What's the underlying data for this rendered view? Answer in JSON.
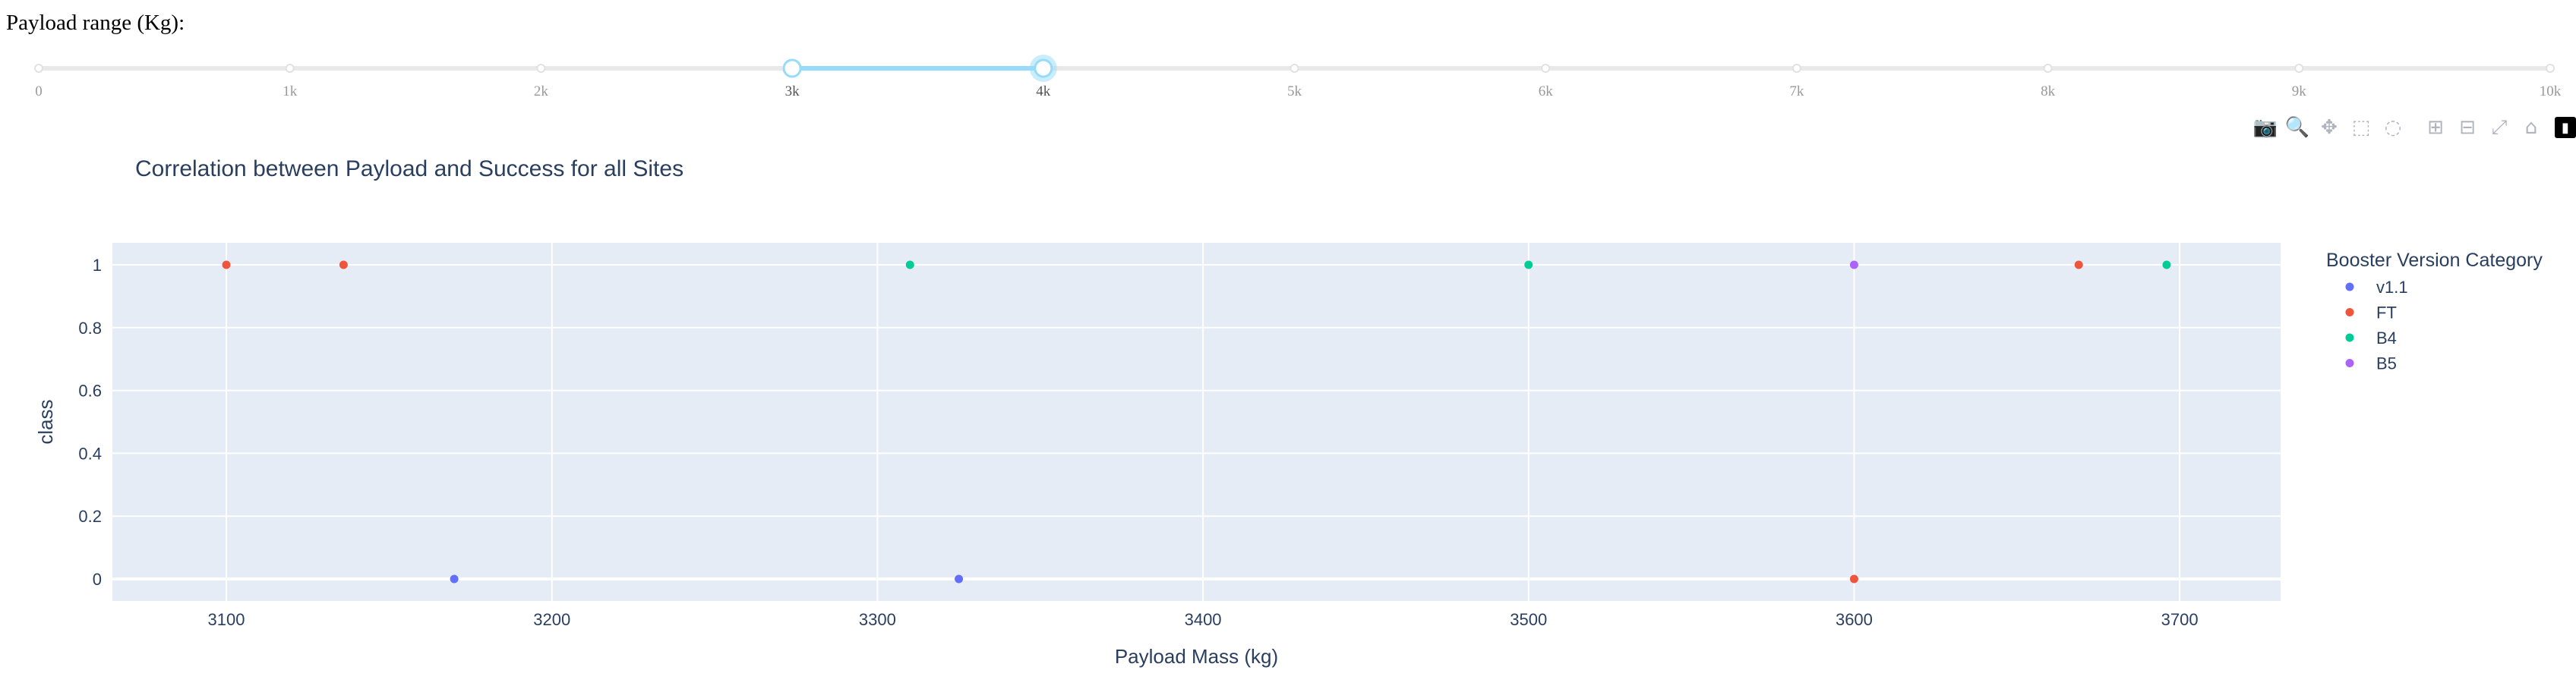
{
  "slider": {
    "label": "Payload range (Kg):",
    "min": 0,
    "max": 10000,
    "marks": [
      {
        "value": 0,
        "label": "0"
      },
      {
        "value": 1000,
        "label": "1k"
      },
      {
        "value": 2000,
        "label": "2k"
      },
      {
        "value": 3000,
        "label": "3k"
      },
      {
        "value": 4000,
        "label": "4k"
      },
      {
        "value": 5000,
        "label": "5k"
      },
      {
        "value": 6000,
        "label": "6k"
      },
      {
        "value": 7000,
        "label": "7k"
      },
      {
        "value": 8000,
        "label": "8k"
      },
      {
        "value": 9000,
        "label": "9k"
      },
      {
        "value": 10000,
        "label": "10k"
      }
    ],
    "range": [
      3000,
      4000
    ],
    "track_color": "#e9e9e9",
    "range_color": "#96dbfa",
    "handle_color": "#96dbfa"
  },
  "modebar": {
    "buttons": [
      {
        "icon": "camera-icon",
        "glyph": "📷",
        "name": "download-plot-button"
      },
      {
        "icon": "zoom-icon",
        "glyph": "🔍",
        "name": "zoom-button",
        "active": true
      },
      {
        "icon": "pan-icon",
        "glyph": "✥",
        "name": "pan-button"
      },
      {
        "icon": "box-select-icon",
        "glyph": "⬚",
        "name": "box-select-button"
      },
      {
        "icon": "lasso-icon",
        "glyph": "◌",
        "name": "lasso-select-button"
      },
      {
        "icon": "zoom-in-icon",
        "glyph": "⊞",
        "name": "zoom-in-button"
      },
      {
        "icon": "zoom-out-icon",
        "glyph": "⊟",
        "name": "zoom-out-button"
      },
      {
        "icon": "autoscale-icon",
        "glyph": "⤢",
        "name": "autoscale-button"
      },
      {
        "icon": "home-icon",
        "glyph": "⌂",
        "name": "reset-axes-button"
      },
      {
        "icon": "plotly-logo-icon",
        "glyph": "▮",
        "name": "plotly-logo"
      }
    ]
  },
  "chart_data": {
    "type": "scatter",
    "title": "Correlation between Payload and Success for all Sites",
    "xlabel": "Payload Mass (kg)",
    "ylabel": "class",
    "xlim": [
      3065,
      3731
    ],
    "ylim": [
      -0.07,
      1.07
    ],
    "xticks": [
      3100,
      3200,
      3300,
      3400,
      3500,
      3600,
      3700
    ],
    "yticks": [
      0,
      0.2,
      0.4,
      0.6,
      0.8,
      1
    ],
    "ytick_labels": [
      "0",
      "0.2",
      "0.4",
      "0.6",
      "0.8",
      "1"
    ],
    "grid": true,
    "plot_bgcolor": "#e5ecf6",
    "legend": {
      "title": "Booster Version Category",
      "position": "right"
    },
    "series": [
      {
        "name": "v1.1",
        "color": "#636efa",
        "x": [
          3170,
          3325
        ],
        "y": [
          0,
          0
        ]
      },
      {
        "name": "FT",
        "color": "#ef553b",
        "x": [
          3100,
          3136,
          3600,
          3669
        ],
        "y": [
          1,
          1,
          0,
          1
        ]
      },
      {
        "name": "B4",
        "color": "#00cc96",
        "x": [
          3310,
          3500,
          3696
        ],
        "y": [
          1,
          1,
          1
        ]
      },
      {
        "name": "B5",
        "color": "#ab63fa",
        "x": [
          3600
        ],
        "y": [
          1
        ]
      }
    ]
  }
}
